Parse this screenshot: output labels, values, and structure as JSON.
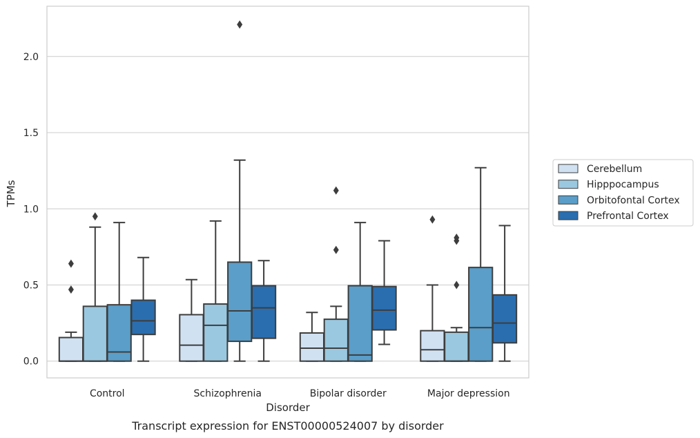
{
  "chart_data": {
    "type": "box",
    "title": "",
    "caption": "Transcript expression for ENST00000524007 by disorder",
    "xlabel": "Disorder",
    "ylabel": "TPMs",
    "ylim": [
      -0.11,
      2.33
    ],
    "yticks": [
      0.0,
      0.5,
      1.0,
      1.5,
      2.0
    ],
    "ytick_labels": [
      "0.0",
      "0.5",
      "1.0",
      "1.5",
      "2.0"
    ],
    "grid": true,
    "legend_position": "right",
    "categories": [
      "Control",
      "Schizophrenia",
      "Bipolar disorder",
      "Major depression"
    ],
    "series": [
      {
        "name": "Cerebellum",
        "color": "#d0e1f2",
        "boxes": [
          {
            "whislo": 0.0,
            "q1": 0.0,
            "med": 0.0,
            "q3": 0.155,
            "whishi": 0.19,
            "fliers": [
              0.47,
              0.64
            ]
          },
          {
            "whislo": 0.0,
            "q1": 0.0,
            "med": 0.105,
            "q3": 0.305,
            "whishi": 0.535,
            "fliers": []
          },
          {
            "whislo": 0.0,
            "q1": 0.0,
            "med": 0.085,
            "q3": 0.185,
            "whishi": 0.32,
            "fliers": []
          },
          {
            "whislo": 0.0,
            "q1": 0.0,
            "med": 0.075,
            "q3": 0.2,
            "whishi": 0.5,
            "fliers": [
              0.93
            ]
          }
        ]
      },
      {
        "name": "Hipppocampus",
        "color": "#9ac8e0",
        "boxes": [
          {
            "whislo": 0.0,
            "q1": 0.0,
            "med": 0.0,
            "q3": 0.36,
            "whishi": 0.88,
            "fliers": [
              0.95
            ]
          },
          {
            "whislo": 0.0,
            "q1": 0.0,
            "med": 0.235,
            "q3": 0.375,
            "whishi": 0.92,
            "fliers": []
          },
          {
            "whislo": 0.0,
            "q1": 0.0,
            "med": 0.085,
            "q3": 0.275,
            "whishi": 0.36,
            "fliers": [
              0.73,
              1.12
            ]
          },
          {
            "whislo": 0.0,
            "q1": 0.0,
            "med": 0.0,
            "q3": 0.19,
            "whishi": 0.22,
            "fliers": [
              0.5,
              0.79,
              0.81
            ]
          }
        ]
      },
      {
        "name": "Orbitofontal Cortex",
        "color": "#5a9ec9",
        "boxes": [
          {
            "whislo": 0.0,
            "q1": 0.0,
            "med": 0.06,
            "q3": 0.37,
            "whishi": 0.91,
            "fliers": []
          },
          {
            "whislo": 0.0,
            "q1": 0.13,
            "med": 0.33,
            "q3": 0.65,
            "whishi": 1.32,
            "fliers": [
              2.21
            ]
          },
          {
            "whislo": 0.0,
            "q1": 0.0,
            "med": 0.04,
            "q3": 0.495,
            "whishi": 0.91,
            "fliers": []
          },
          {
            "whislo": 0.0,
            "q1": 0.0,
            "med": 0.22,
            "q3": 0.615,
            "whishi": 1.27,
            "fliers": []
          }
        ]
      },
      {
        "name": "Prefrontal Cortex",
        "color": "#2a6eaf",
        "boxes": [
          {
            "whislo": 0.0,
            "q1": 0.175,
            "med": 0.265,
            "q3": 0.4,
            "whishi": 0.68,
            "fliers": []
          },
          {
            "whislo": 0.0,
            "q1": 0.15,
            "med": 0.35,
            "q3": 0.495,
            "whishi": 0.66,
            "fliers": []
          },
          {
            "whislo": 0.11,
            "q1": 0.205,
            "med": 0.335,
            "q3": 0.49,
            "whishi": 0.79,
            "fliers": []
          },
          {
            "whislo": 0.0,
            "q1": 0.12,
            "med": 0.25,
            "q3": 0.435,
            "whishi": 0.89,
            "fliers": []
          }
        ]
      }
    ]
  }
}
